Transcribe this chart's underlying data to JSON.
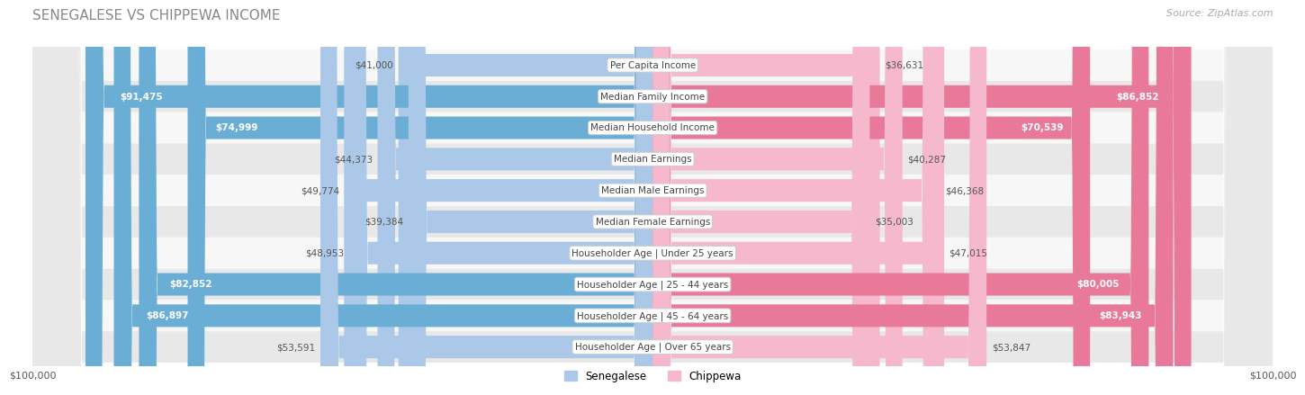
{
  "title": "SENEGALESE VS CHIPPEWA INCOME",
  "source": "Source: ZipAtlas.com",
  "categories": [
    "Per Capita Income",
    "Median Family Income",
    "Median Household Income",
    "Median Earnings",
    "Median Male Earnings",
    "Median Female Earnings",
    "Householder Age | Under 25 years",
    "Householder Age | 25 - 44 years",
    "Householder Age | 45 - 64 years",
    "Householder Age | Over 65 years"
  ],
  "senegalese_values": [
    41000,
    91475,
    74999,
    44373,
    49774,
    39384,
    48953,
    82852,
    86897,
    53591
  ],
  "chippewa_values": [
    36631,
    86852,
    70539,
    40287,
    46368,
    35003,
    47015,
    80005,
    83943,
    53847
  ],
  "senegalese_labels": [
    "$41,000",
    "$91,475",
    "$74,999",
    "$44,373",
    "$49,774",
    "$39,384",
    "$48,953",
    "$82,852",
    "$86,897",
    "$53,591"
  ],
  "chippewa_labels": [
    "$36,631",
    "$86,852",
    "$70,539",
    "$40,287",
    "$46,368",
    "$35,003",
    "$47,015",
    "$80,005",
    "$83,943",
    "$53,847"
  ],
  "senegalese_color_low": "#abc8e8",
  "senegalese_color_high": "#6aaed6",
  "chippewa_color_low": "#f5b8cc",
  "chippewa_color_high": "#e8799a",
  "threshold": 60000,
  "max_val": 100000,
  "legend_senegalese": "Senegalese",
  "legend_chippewa": "Chippewa",
  "row_bg_light": "#f7f7f7",
  "row_bg_dark": "#e8e8e8",
  "xlabel_left": "$100,000",
  "xlabel_right": "$100,000"
}
